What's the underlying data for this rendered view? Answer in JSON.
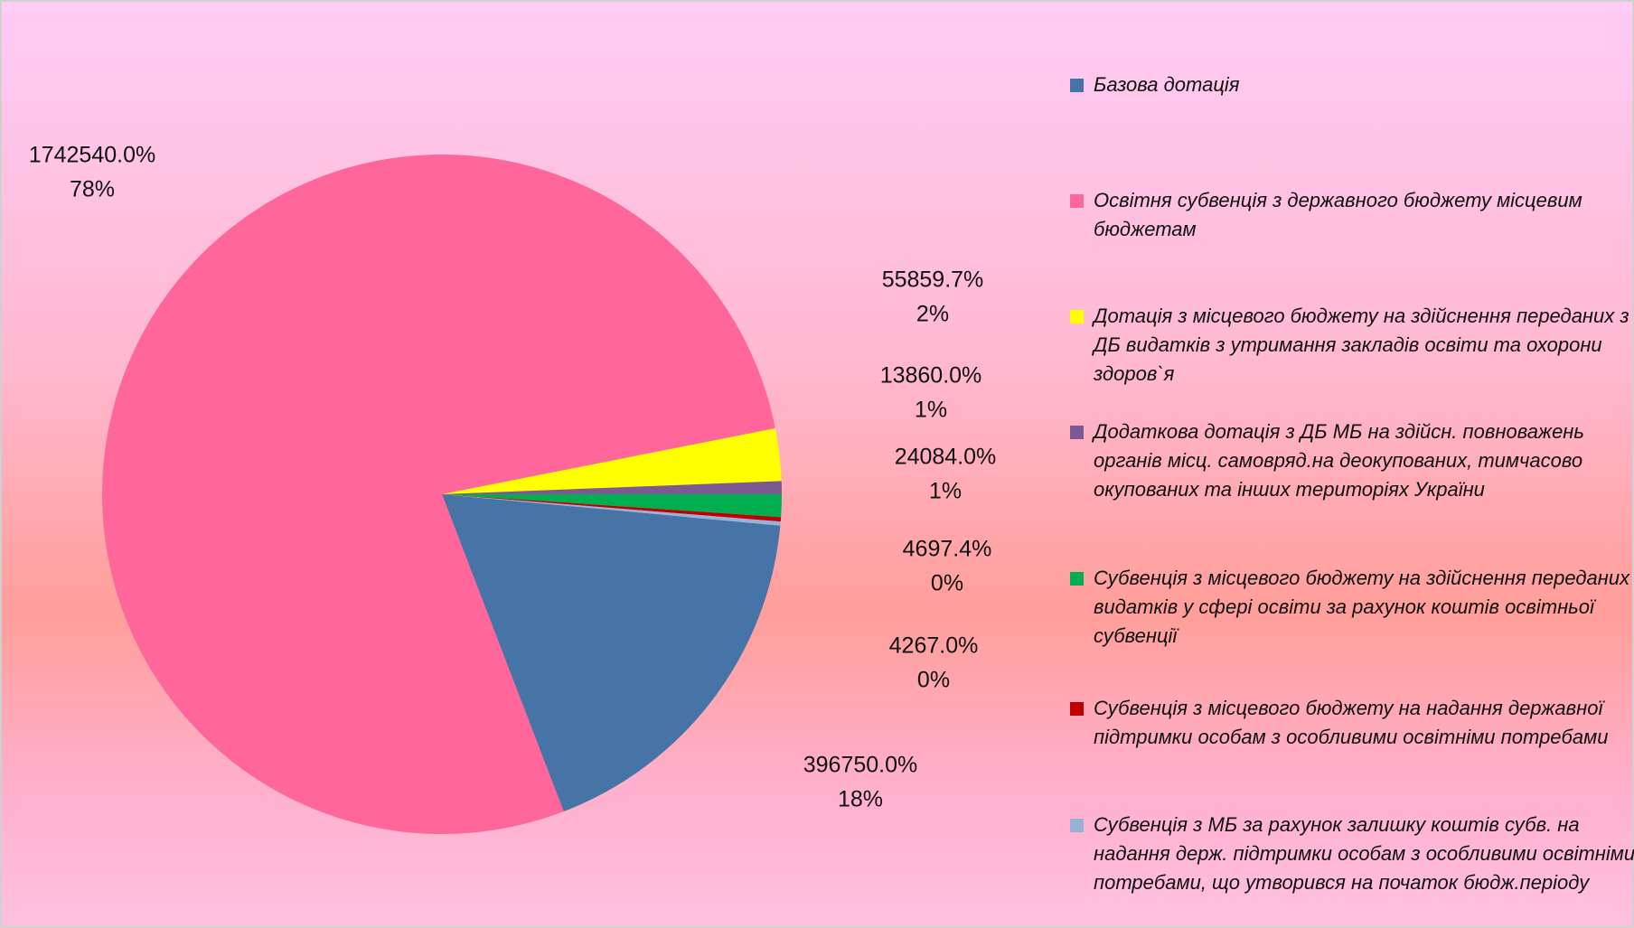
{
  "chart_data": {
    "type": "pie",
    "series": [
      {
        "name": "Базова дотація",
        "color": "#4674a6",
        "values": [
          396750
        ],
        "value_labels": [
          "396750.0%"
        ],
        "percent_labels": [
          "18%"
        ]
      },
      {
        "name": "Освітня субвенція з державного бюджету місцевим бюджетам",
        "color": "#ff6699",
        "values": [
          1742540
        ],
        "value_labels": [
          "1742540.0%"
        ],
        "percent_labels": [
          "78%"
        ]
      },
      {
        "name": "Дотація з місцевого бюджету на здійснення переданих з ДБ видатків з утримання закладів освіти та охорони здоров`я",
        "color": "#ffff00",
        "values": [
          55859.7
        ],
        "value_labels": [
          "55859.7%"
        ],
        "percent_labels": [
          "2%"
        ]
      },
      {
        "name": "Додаткова дотація з ДБ МБ на здійсн. повноважень органів місц. самовряд.на деокупованих, тимчасово окупованих та інших територіях України",
        "color": "#7b5a94",
        "values": [
          13860
        ],
        "value_labels": [
          "13860.0%"
        ],
        "percent_labels": [
          "1%"
        ]
      },
      {
        "name": "Субвенція з місцевого бюджету на здійснення переданих видатків у сфері освіти за рахунок коштів освітньої субвенції",
        "color": "#00b050",
        "values": [
          24084
        ],
        "value_labels": [
          "24084.0%"
        ],
        "percent_labels": [
          "1%"
        ]
      },
      {
        "name": "Субвенція з місцевого бюджету на надання державної підтримки особам з особливими освітніми потребами",
        "color": "#c00000",
        "values": [
          4697.4
        ],
        "value_labels": [
          "4697.4%"
        ],
        "percent_labels": [
          "0%"
        ]
      },
      {
        "name": "Субвенція з МБ за рахунок залишку коштів субв. на надання держ. підтримки особам з особливими освітніми потребами, що утворився на початок бюдж.періоду",
        "color": "#95b3d7",
        "values": [
          4267
        ],
        "value_labels": [
          "4267.0%"
        ],
        "percent_labels": [
          "0%"
        ]
      }
    ]
  }
}
